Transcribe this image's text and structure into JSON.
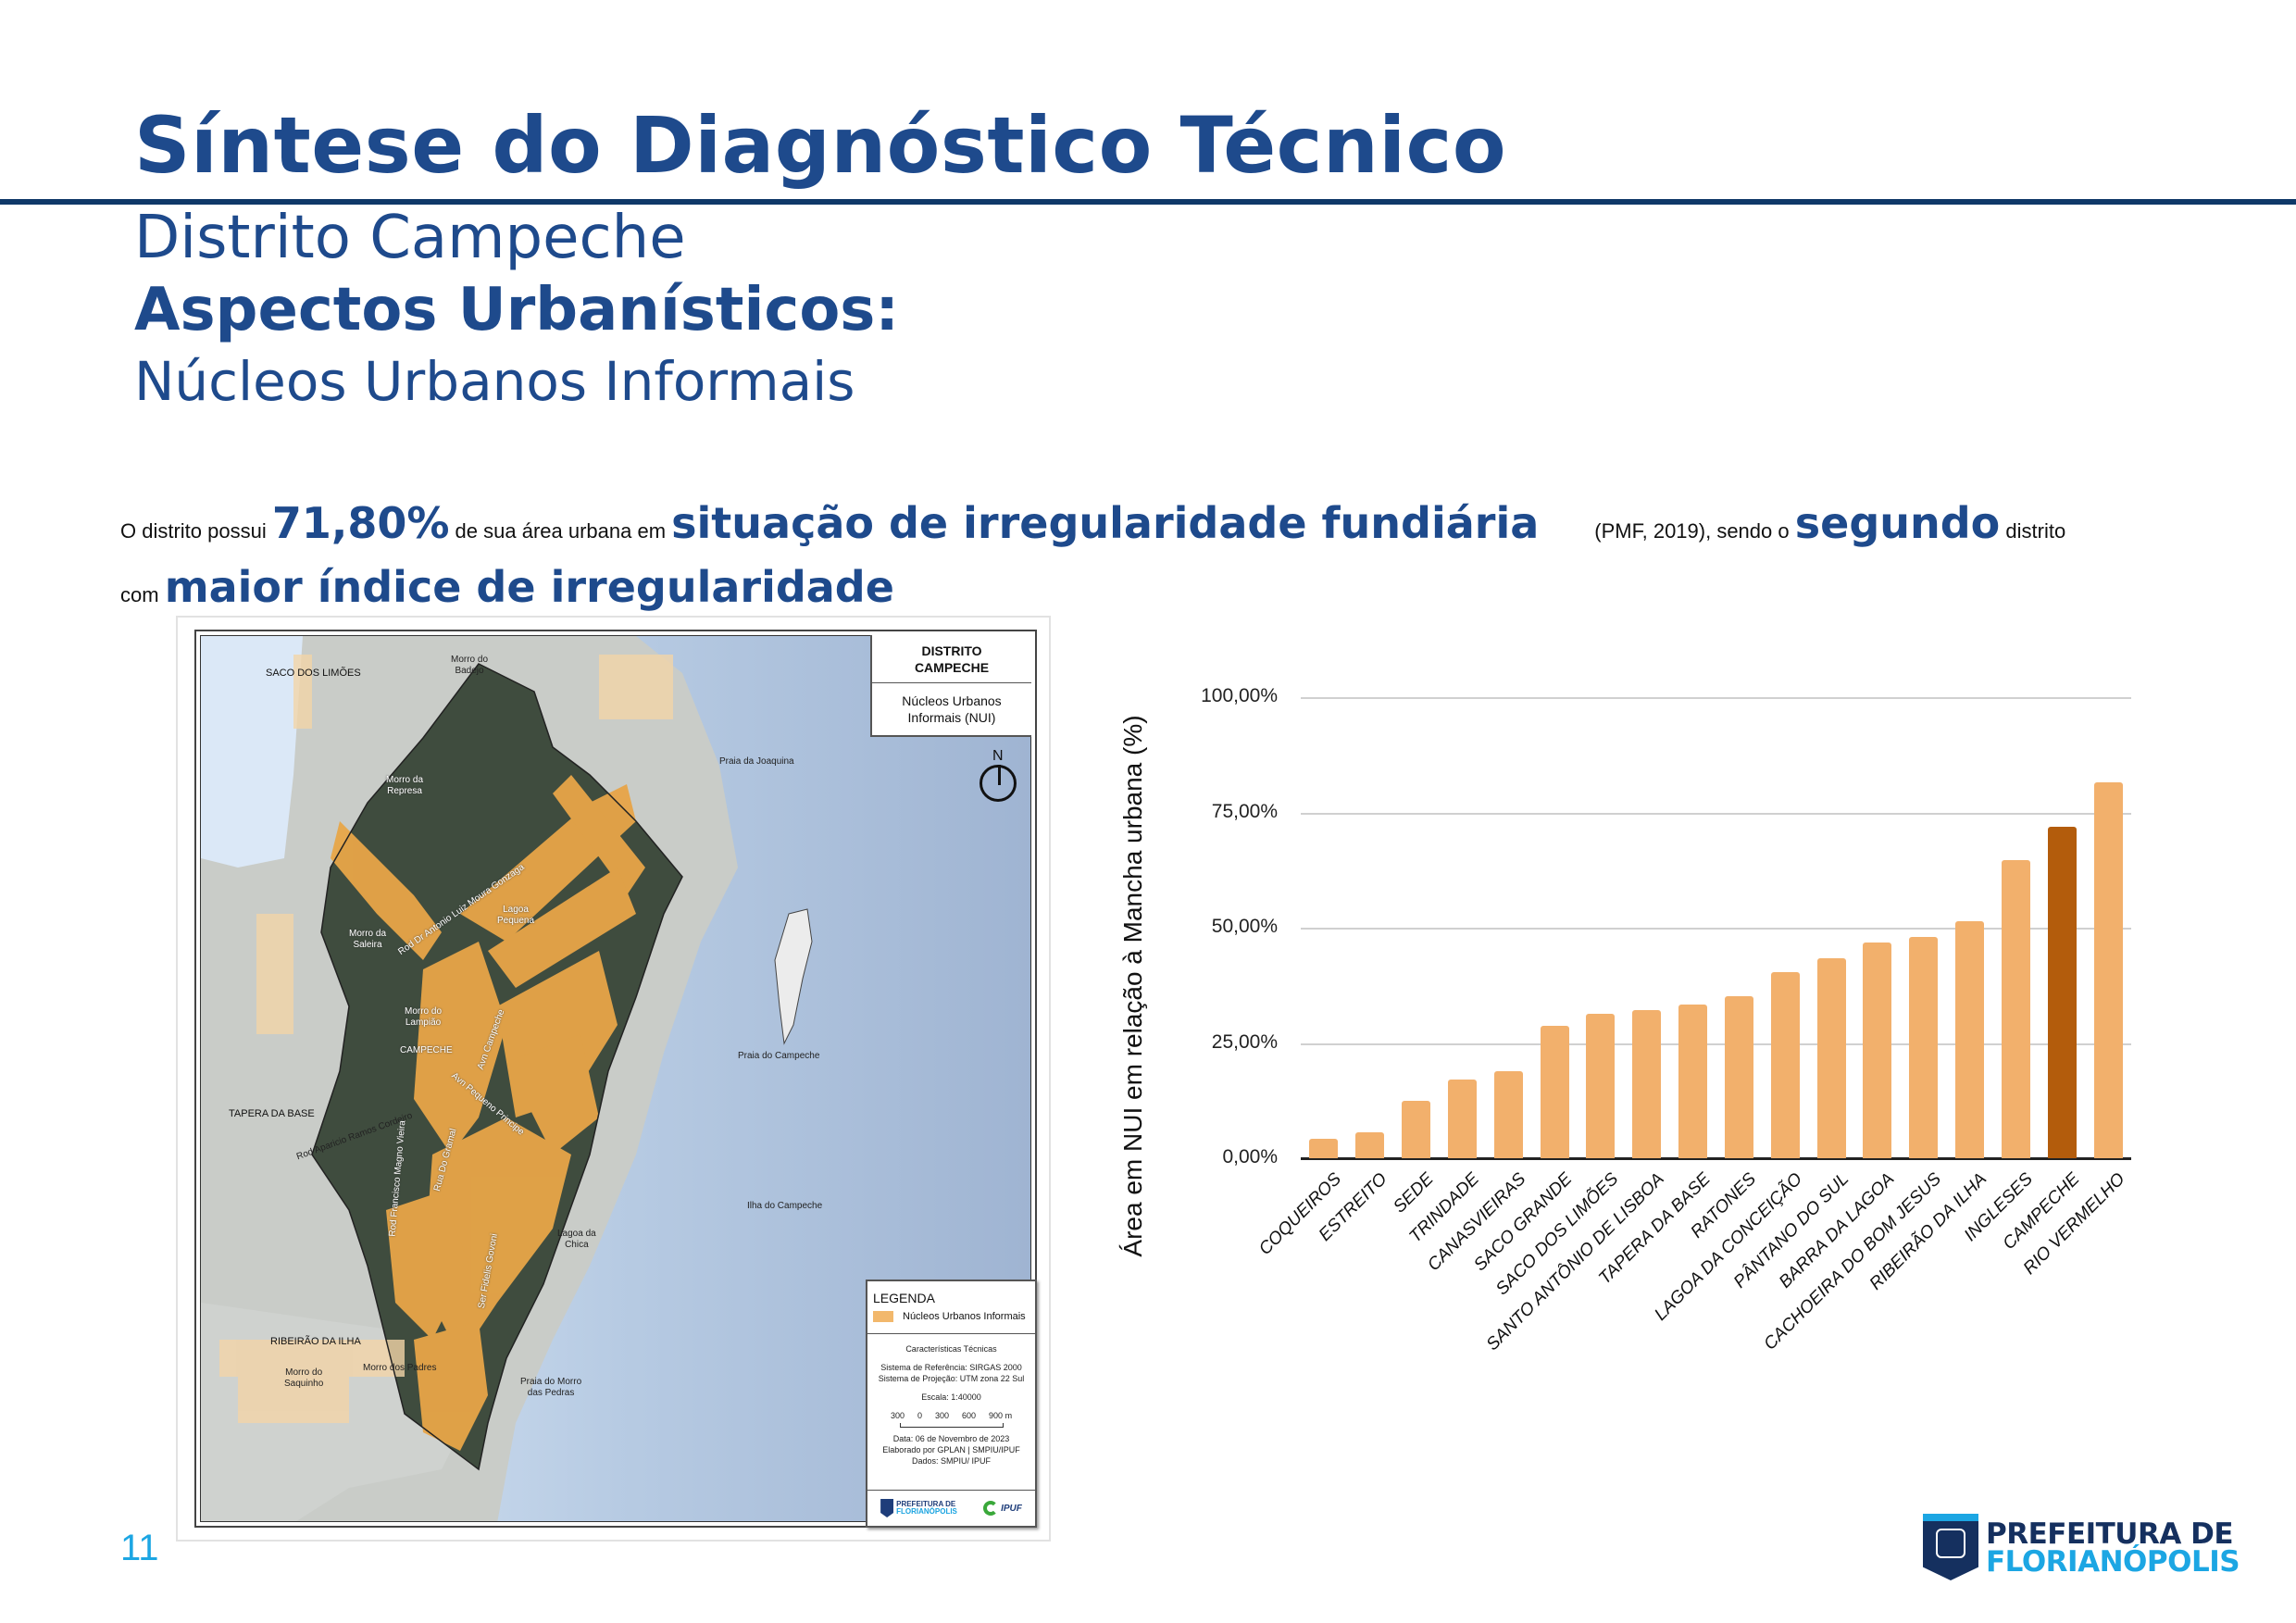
{
  "header": {
    "title": "Síntese do Diagnóstico Técnico",
    "subtitle": "Distrito Campeche",
    "section": "Aspectos Urbanísticos:",
    "section_sub": "Núcleos Urbanos Informais",
    "rule_color": "#0f3868",
    "accent_color": "#1e4a8c"
  },
  "statement": {
    "p1": "O distrito possui ",
    "highlight_pct": "71,80%",
    "p2": " de sua área urbana em ",
    "highlight_1": "situação de irregularidade fundiária",
    "p3": "(PMF, 2019), sendo o ",
    "highlight_2": "segundo",
    "p4": " distrito",
    "p5": "com ",
    "highlight_3": "maior índice de irregularidade"
  },
  "map": {
    "title_box": {
      "line1": "DISTRITO",
      "line2": "CAMPECHE",
      "subtitle_line1": "Núcleos Urbanos",
      "subtitle_line2": "Informais (NUI)"
    },
    "north_label": "N",
    "labels": {
      "saco_dos_limoes": "SACO DOS LIMÕES",
      "morro_badejo": "Morro do\nBadejo",
      "praia_joaquina": "Praia da Joaquina",
      "morro_represa": "Morro da\nRepresa",
      "lagoa_pequena": "Lagoa\nPequena",
      "morro_saleira": "Morro da\nSaleira",
      "rod_antonio": "Rod Dr Antonio Luiz Moura Gonzaga",
      "morro_lampiao": "Morro do\nLampião",
      "campeche": "CAMPECHE",
      "avn_campeche": "Avn Campeche",
      "praia_campeche": "Praia do Campeche",
      "tapera_base": "TAPERA DA BASE",
      "rod_aparicio": "Rod Aparicio Ramos Cordeiro",
      "avn_pequeno_principe": "Avn Pequeno Principe",
      "rod_francisco": "Rod Francisco Magno Vieira",
      "rua_gramal": "Rua Do Gramal",
      "ilha_campeche": "Ilha do Campeche",
      "lagoa_chica": "Lagoa da\nChica",
      "ser_fidelis": "Ser Fidelis Govoni",
      "ribeirao_ilha": "RIBEIRÃO DA ILHA",
      "morro_saquinho": "Morro do\nSaquinho",
      "morro_padres": "Morro dos Padres",
      "praia_morro_pedras": "Praia do Morro\ndas Pedras"
    },
    "legend": {
      "title": "LEGENDA",
      "item": "Núcleos Urbanos Informais",
      "item_color": "#f2b86c",
      "tech_title": "Características Técnicas",
      "ref_system": "Sistema de Referência: SIRGAS 2000",
      "proj_system": "Sistema de Projeção: UTM zona 22 Sul",
      "scale": "Escala: 1:40000",
      "scale_ticks": [
        "300",
        "0",
        "300",
        "600",
        "900 m"
      ],
      "date": "Data: 06 de Novembro de 2023",
      "author": "Elaborado por GPLAN | SMPIU/IPUF",
      "source": "Dados: SMPIU/ IPUF",
      "logo1_line1": "PREFEITURA DE",
      "logo1_line2": "FLORIANÓPOLIS",
      "logo2": "IPUF"
    }
  },
  "chart_data": {
    "type": "bar",
    "title": "",
    "xlabel": "",
    "ylabel": "Área em NUI em relação à Mancha urbana (%)",
    "ylim": [
      0,
      100
    ],
    "yticks": [
      "0,00%",
      "25,00%",
      "50,00%",
      "75,00%",
      "100,00%"
    ],
    "grid": true,
    "legend": "none",
    "categories": [
      "COQUEIROS",
      "ESTREITO",
      "SEDE",
      "TRINDADE",
      "CANASVIEIRAS",
      "SACO GRANDE",
      "SACO DOS LIMÕES",
      "SANTO ANTÔNIO DE LISBOA",
      "TAPERA DA BASE",
      "RATONES",
      "LAGOA DA CONCEIÇÃO",
      "PÂNTANO DO SUL",
      "BARRA DA LAGOA",
      "CACHOEIRA DO BOM JESUS",
      "RIBEIRÃO DA ILHA",
      "INGLESES",
      "CAMPECHE",
      "RIO VERMELHO"
    ],
    "values": [
      4.3,
      5.6,
      12.5,
      17.1,
      18.9,
      28.7,
      31.3,
      32.1,
      33.4,
      35.1,
      40.3,
      43.3,
      46.7,
      48.0,
      51.5,
      64.7,
      71.8,
      81.5
    ],
    "highlight": "CAMPECHE",
    "bar_color": "#f2b06c",
    "highlight_color": "#b35c0c"
  },
  "footer": {
    "page_number": "11",
    "logo_line1": "PREFEITURA DE",
    "logo_line2": "FLORIANÓPOLIS"
  }
}
